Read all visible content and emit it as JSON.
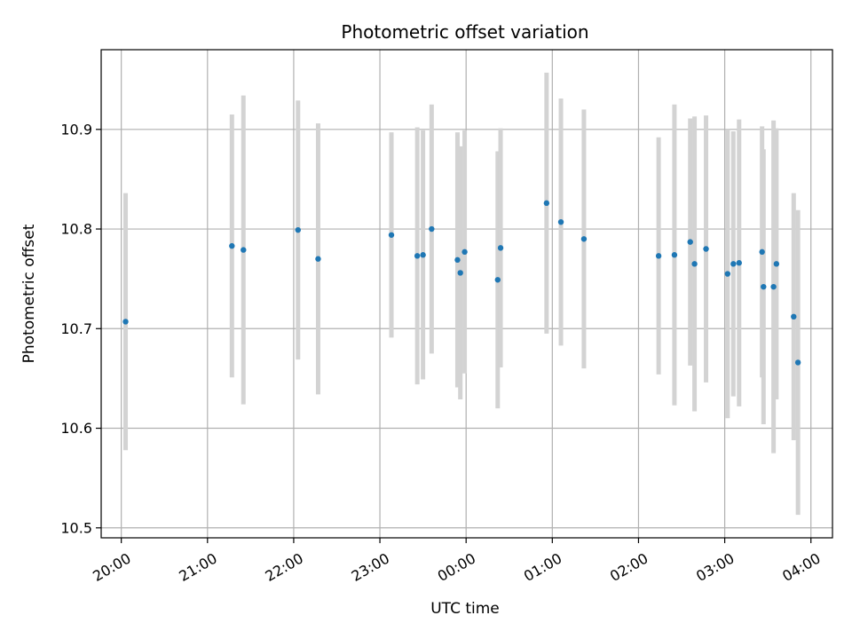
{
  "chart_data": {
    "type": "scatter",
    "title": "Photometric offset variation",
    "xlabel": "UTC time",
    "ylabel": "Photometric offset",
    "x_unit": "UTC time (HH:MM), spanning midnight",
    "xlim": [
      "19:46",
      "04:15"
    ],
    "ylim": [
      10.49,
      10.98
    ],
    "x_ticks": [
      "20:00",
      "21:00",
      "22:00",
      "23:00",
      "00:00",
      "01:00",
      "02:00",
      "03:00",
      "04:00"
    ],
    "y_ticks": [
      "10.5",
      "10.6",
      "10.7",
      "10.8",
      "10.9"
    ],
    "grid": true,
    "colors": {
      "point": "#1f77b4",
      "errorbar": "#d3d3d3",
      "grid": "#b0b0b0"
    },
    "series": [
      {
        "points": [
          {
            "t": "20:03",
            "y": 10.707,
            "err": 0.129
          },
          {
            "t": "21:17",
            "y": 10.783,
            "err": 0.132
          },
          {
            "t": "21:25",
            "y": 10.779,
            "err": 0.155
          },
          {
            "t": "22:03",
            "y": 10.799,
            "err": 0.13
          },
          {
            "t": "22:17",
            "y": 10.77,
            "err": 0.136
          },
          {
            "t": "23:08",
            "y": 10.794,
            "err": 0.103
          },
          {
            "t": "23:26",
            "y": 10.773,
            "err": 0.129
          },
          {
            "t": "23:30",
            "y": 10.774,
            "err": 0.125
          },
          {
            "t": "23:36",
            "y": 10.8,
            "err": 0.125
          },
          {
            "t": "23:54",
            "y": 10.769,
            "err": 0.128
          },
          {
            "t": "23:56",
            "y": 10.756,
            "err": 0.127
          },
          {
            "t": "23:59",
            "y": 10.777,
            "err": 0.122
          },
          {
            "t": "00:22",
            "y": 10.749,
            "err": 0.129
          },
          {
            "t": "00:24",
            "y": 10.781,
            "err": 0.12
          },
          {
            "t": "00:56",
            "y": 10.826,
            "err": 0.131
          },
          {
            "t": "01:06",
            "y": 10.807,
            "err": 0.124
          },
          {
            "t": "01:22",
            "y": 10.79,
            "err": 0.13
          },
          {
            "t": "02:14",
            "y": 10.773,
            "err": 0.119
          },
          {
            "t": "02:25",
            "y": 10.774,
            "err": 0.151
          },
          {
            "t": "02:36",
            "y": 10.787,
            "err": 0.124
          },
          {
            "t": "02:39",
            "y": 10.765,
            "err": 0.148
          },
          {
            "t": "02:47",
            "y": 10.78,
            "err": 0.134
          },
          {
            "t": "03:02",
            "y": 10.755,
            "err": 0.145
          },
          {
            "t": "03:06",
            "y": 10.765,
            "err": 0.133
          },
          {
            "t": "03:10",
            "y": 10.766,
            "err": 0.144
          },
          {
            "t": "03:26",
            "y": 10.777,
            "err": 0.126
          },
          {
            "t": "03:27",
            "y": 10.742,
            "err": 0.138
          },
          {
            "t": "03:34",
            "y": 10.742,
            "err": 0.167
          },
          {
            "t": "03:36",
            "y": 10.765,
            "err": 0.136
          },
          {
            "t": "03:48",
            "y": 10.712,
            "err": 0.124
          },
          {
            "t": "03:51",
            "y": 10.666,
            "err": 0.153
          }
        ]
      }
    ]
  }
}
